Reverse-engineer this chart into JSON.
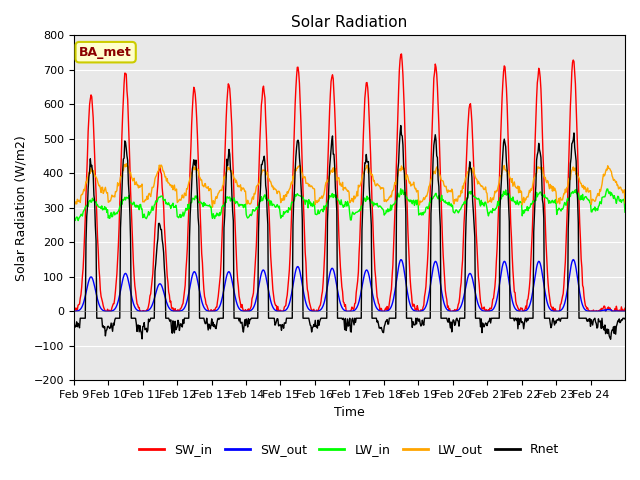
{
  "title": "Solar Radiation",
  "xlabel": "Time",
  "ylabel": "Solar Radiation (W/m2)",
  "ylim": [
    -200,
    800
  ],
  "yticks": [
    -200,
    -100,
    0,
    100,
    200,
    300,
    400,
    500,
    600,
    700,
    800
  ],
  "xtick_labels": [
    "Feb 9",
    "Feb 10",
    "Feb 11",
    "Feb 12",
    "Feb 13",
    "Feb 14",
    "Feb 15",
    "Feb 16",
    "Feb 17",
    "Feb 18",
    "Feb 19",
    "Feb 20",
    "Feb 21",
    "Feb 22",
    "Feb 23",
    "Feb 24"
  ],
  "annotation": "BA_met",
  "colors": {
    "SW_in": "#ff0000",
    "SW_out": "#0000ff",
    "LW_in": "#00ff00",
    "LW_out": "#ffa500",
    "Rnet": "#000000"
  },
  "bg_color": "#e8e8e8",
  "n_days": 16,
  "n_points_per_day": 48,
  "peaks_SW_in": [
    630,
    690,
    415,
    645,
    660,
    655,
    705,
    685,
    665,
    750,
    715,
    600,
    710,
    705,
    730,
    10
  ],
  "peaks_SW_out": [
    100,
    110,
    80,
    115,
    115,
    120,
    130,
    125,
    120,
    150,
    145,
    110,
    145,
    145,
    150,
    5
  ]
}
